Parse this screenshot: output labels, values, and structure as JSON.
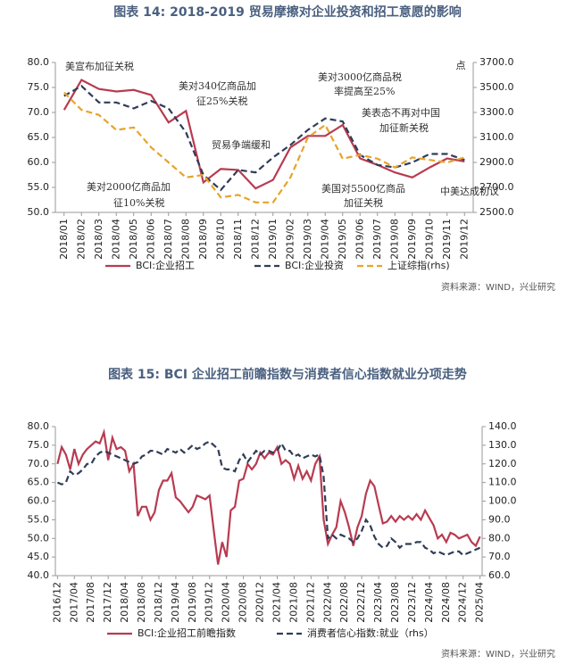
{
  "chart_data": [
    {
      "type": "line",
      "title": "图表 14: 2018-2019 贸易摩擦对企业投资和招工意愿的影响",
      "categories": [
        "2018/01",
        "2018/02",
        "2018/03",
        "2018/04",
        "2018/05",
        "2018/06",
        "2018/07",
        "2018/08",
        "2018/09",
        "2018/10",
        "2018/11",
        "2018/12",
        "2019/01",
        "2019/02",
        "2019/03",
        "2019/04",
        "2019/05",
        "2019/06",
        "2019/07",
        "2019/08",
        "2019/09",
        "2019/10",
        "2019/11",
        "2019/12"
      ],
      "series": [
        {
          "name": "BCI:企业招工",
          "color": "#b83b50",
          "style": "solid",
          "values": [
            70.5,
            76.5,
            74.7,
            74.2,
            74.5,
            73.5,
            68.0,
            70.3,
            56.0,
            58.7,
            58.5,
            54.8,
            56.5,
            63.0,
            65.3,
            65.3,
            67.5,
            60.8,
            59.5,
            58.0,
            57.0,
            59.0,
            60.8,
            60.2
          ]
        },
        {
          "name": "BCI:企业投资",
          "color": "#2f3d57",
          "style": "dashed",
          "values": [
            73.3,
            75.3,
            72.0,
            72.0,
            70.8,
            72.3,
            70.8,
            66.0,
            57.5,
            54.5,
            58.5,
            58.0,
            61.0,
            63.5,
            66.5,
            68.8,
            68.2,
            61.5,
            59.5,
            59.0,
            60.0,
            61.7,
            61.7,
            60.5
          ]
        },
        {
          "name": "上证综指(rhs)",
          "color": "#e6a42b",
          "style": "dashed",
          "axis": "y2",
          "values": [
            3460,
            3320,
            3280,
            3160,
            3180,
            3020,
            2900,
            2780,
            2800,
            2620,
            2640,
            2580,
            2580,
            2780,
            3100,
            3200,
            2930,
            2960,
            2930,
            2860,
            2940,
            2920,
            2900,
            2940
          ]
        }
      ],
      "ylim": [
        50,
        80
      ],
      "yticks": [
        {
          "value": 50,
          "label": "50.0"
        },
        {
          "value": 55,
          "label": "55.0"
        },
        {
          "value": 60,
          "label": "60.0"
        },
        {
          "value": 65,
          "label": "65.0"
        },
        {
          "value": 70,
          "label": "70.0"
        },
        {
          "value": 75,
          "label": "75.0"
        },
        {
          "value": 80,
          "label": "80.0"
        }
      ],
      "y2lim": [
        2500,
        3700
      ],
      "y2ticks": [
        {
          "value": 2500,
          "label": "2500.0"
        },
        {
          "value": 2700,
          "label": "2700.0"
        },
        {
          "value": 2900,
          "label": "2900.0"
        },
        {
          "value": 3100,
          "label": "3100.0"
        },
        {
          "value": 3300,
          "label": "3300.0"
        },
        {
          "value": 3500,
          "label": "3500.0"
        },
        {
          "value": 3700,
          "label": "3700.0"
        }
      ],
      "y2label": "点",
      "annotations": [
        [
          "美宣布加征关税"
        ],
        [
          "美对340亿商品加",
          "征25%关税"
        ],
        [
          "美对2000亿商品加",
          "征10%关税"
        ],
        [
          "贸易争端缓和"
        ],
        [
          "美对3000亿商品税",
          "率提高至25%"
        ],
        [
          "美表态不再对中国",
          "加征新关税"
        ],
        [
          "美国对5500亿商品",
          "加征关税"
        ],
        [
          "中美达成初议"
        ]
      ],
      "source": "资料来源：WIND，兴业研究"
    },
    {
      "type": "line",
      "title": "图表 15: BCI 企业招工前瞻指数与消费者信心指数就业分项走势",
      "categories": [
        "2016/12",
        null,
        null,
        null,
        "2017/04",
        null,
        null,
        null,
        "2017/08",
        null,
        null,
        null,
        "2017/12",
        null,
        null,
        null,
        "2018/04",
        null,
        null,
        null,
        "2018/08",
        null,
        null,
        null,
        "2018/12",
        null,
        null,
        null,
        "2019/04",
        null,
        null,
        null,
        "2019/08",
        null,
        null,
        null,
        "2019/12",
        null,
        null,
        null,
        "2020/04",
        null,
        null,
        null,
        "2020/08",
        null,
        null,
        null,
        "2020/12",
        null,
        null,
        null,
        "2021/04",
        null,
        null,
        null,
        "2021/08",
        null,
        null,
        null,
        "2021/12",
        null,
        null,
        null,
        "2022/04",
        null,
        null,
        null,
        "2022/08",
        null,
        null,
        null,
        "2022/12",
        null,
        null,
        null,
        "2023/04",
        null,
        null,
        null,
        "2023/08",
        null,
        null,
        null,
        "2023/12",
        null,
        null,
        null,
        "2024/04",
        null,
        null,
        null,
        "2024/08",
        null,
        null,
        null,
        "2024/12",
        null,
        null,
        null,
        "2025/04"
      ],
      "series": [
        {
          "name": "BCI:企业招工前瞻指数",
          "color": "#b83b50",
          "style": "solid",
          "values": [
            70,
            74.5,
            72.5,
            68.5,
            74,
            70,
            72.5,
            74,
            75,
            76,
            75.5,
            78.5,
            71,
            77,
            74,
            74.5,
            73.5,
            68,
            70,
            56,
            58.5,
            58.5,
            55,
            57,
            63,
            65.5,
            65.5,
            67.5,
            61,
            60,
            58.5,
            57,
            58.5,
            61.5,
            61,
            60.5,
            61.5,
            52,
            43,
            49,
            45,
            57.5,
            58.5,
            65.5,
            66,
            70,
            68.5,
            70,
            73,
            71.5,
            73,
            72.5,
            74.5,
            70,
            71,
            70,
            66,
            69.5,
            66,
            68,
            65.5,
            70,
            72,
            55,
            48.5,
            51,
            53,
            60,
            57,
            53,
            48,
            53,
            56,
            62,
            65.5,
            64,
            59,
            54,
            54.5,
            56,
            54.5,
            56,
            55,
            56,
            55,
            56.5,
            55,
            57.5,
            55.5,
            53.5,
            50,
            51,
            49,
            51.5,
            51,
            50,
            50.5,
            51,
            49,
            48,
            50.5
          ]
        },
        {
          "name": "消费者信心指数:就业（rhs）",
          "color": "#2f3d57",
          "style": "dashed",
          "axis": "y2",
          "values": [
            110,
            109,
            110,
            116,
            114,
            115,
            117,
            120,
            120,
            124,
            126,
            127,
            126,
            125,
            124,
            123,
            122,
            121,
            120,
            121,
            124,
            125,
            127,
            127,
            126,
            125,
            128,
            127,
            126,
            128,
            126,
            128,
            130,
            128,
            129,
            131,
            132,
            130,
            128,
            118,
            117,
            117,
            116,
            122,
            125,
            121,
            124,
            127,
            125,
            127,
            127,
            126,
            127,
            131,
            127,
            127,
            124,
            125,
            123,
            124,
            125,
            124,
            125,
            113,
            80,
            82,
            80,
            82,
            81,
            80,
            78,
            80,
            84,
            90,
            87,
            81,
            77,
            75,
            76,
            80,
            78,
            75,
            77,
            77,
            77,
            78,
            78,
            75,
            74,
            72,
            73,
            72,
            71,
            72,
            73,
            73,
            71,
            72,
            73,
            74,
            75
          ]
        }
      ],
      "ylim": [
        40,
        80
      ],
      "yticks": [
        {
          "value": 40,
          "label": "40.0"
        },
        {
          "value": 45,
          "label": "45.0"
        },
        {
          "value": 50,
          "label": "50.0"
        },
        {
          "value": 55,
          "label": "55.0"
        },
        {
          "value": 60,
          "label": "60.0"
        },
        {
          "value": 65,
          "label": "65.0"
        },
        {
          "value": 70,
          "label": "70.0"
        },
        {
          "value": 75,
          "label": "75.0"
        },
        {
          "value": 80,
          "label": "80.0"
        }
      ],
      "y2lim": [
        60,
        140
      ],
      "y2ticks": [
        {
          "value": 60,
          "label": "60.0"
        },
        {
          "value": 70,
          "label": "70.0"
        },
        {
          "value": 80,
          "label": "80.0"
        },
        {
          "value": 90,
          "label": "90.0"
        },
        {
          "value": 100,
          "label": "100.0"
        },
        {
          "value": 110,
          "label": "110.0"
        },
        {
          "value": 120,
          "label": "120.0"
        },
        {
          "value": 130,
          "label": "130.0"
        },
        {
          "value": 140,
          "label": "140.0"
        }
      ],
      "source": "资料来源：WIND，兴业研究"
    }
  ]
}
